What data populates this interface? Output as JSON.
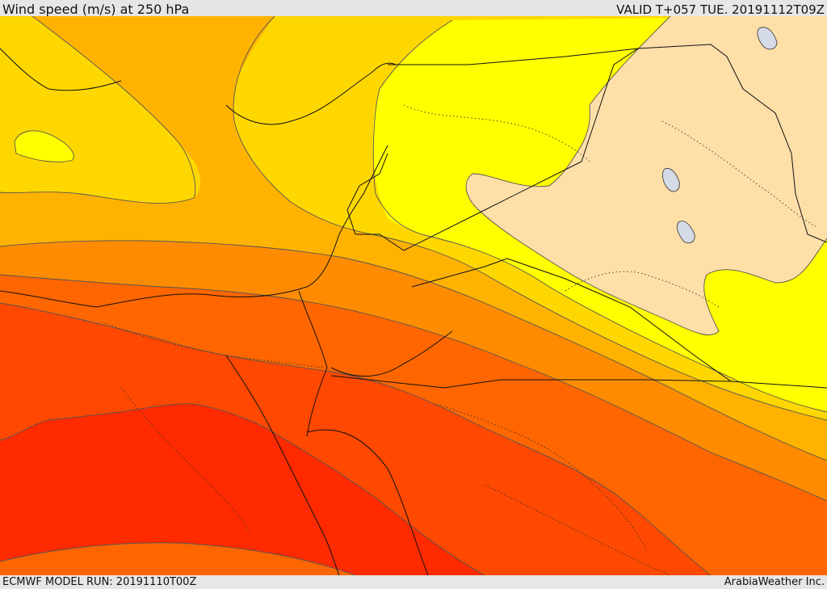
{
  "header": {
    "title": "Wind speed (m/s) at 250 hPa",
    "valid": "VALID T+057 TUE. 20191112T09Z"
  },
  "footer": {
    "model_run": "ECMWF MODEL RUN: 20191110T00Z",
    "credit": "ArabiaWeather Inc."
  },
  "colors": {
    "band_1": "#ffdfa8",
    "band_2": "#ffff00",
    "band_3": "#ffd700",
    "band_4": "#ffb300",
    "band_5": "#ff8c00",
    "band_6": "#ff6600",
    "band_7": "#ff4800",
    "band_8": "#ff2a00",
    "water": "#d4dae6",
    "contour_line": "#555555",
    "border_line": "#111111"
  }
}
